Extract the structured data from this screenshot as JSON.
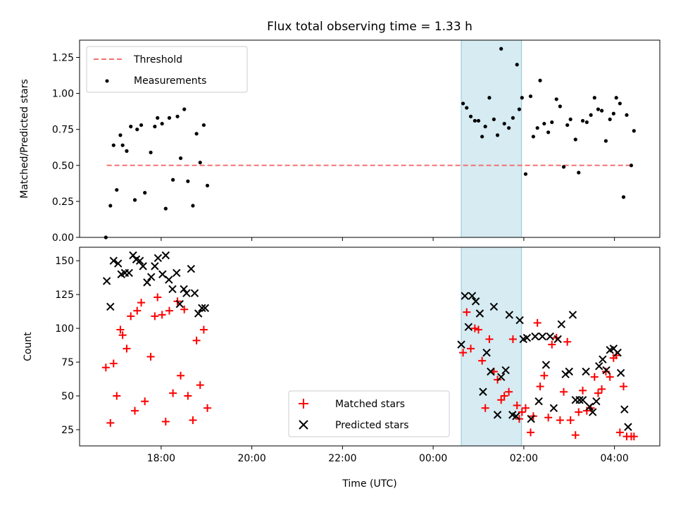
{
  "chart_data": [
    {
      "type": "scatter",
      "title": "Flux total observing time = 1.33 h",
      "xlabel": "",
      "ylabel": "Matched/Predicted stars",
      "xlim_hours": [
        16.2,
        29.0
      ],
      "ylim": [
        0,
        1.37
      ],
      "yticks": [
        "0.00",
        "0.25",
        "0.50",
        "0.75",
        "1.00",
        "1.25"
      ],
      "legend_position": "upper-left",
      "shaded_interval_hours": [
        24.62,
        25.95
      ],
      "threshold": {
        "name": "Threshold",
        "value": 0.5,
        "x_range_hours": [
          16.8,
          28.4
        ],
        "color": "#f27272"
      },
      "series": [
        {
          "name": "Measurements",
          "color": "#000000",
          "points": [
            [
              16.78,
              0.0
            ],
            [
              16.88,
              0.22
            ],
            [
              16.95,
              0.64
            ],
            [
              17.02,
              0.33
            ],
            [
              17.1,
              0.71
            ],
            [
              17.15,
              0.64
            ],
            [
              17.24,
              0.6
            ],
            [
              17.33,
              0.77
            ],
            [
              17.42,
              0.26
            ],
            [
              17.47,
              0.75
            ],
            [
              17.56,
              0.78
            ],
            [
              17.64,
              0.31
            ],
            [
              17.77,
              0.59
            ],
            [
              17.86,
              0.77
            ],
            [
              17.92,
              0.83
            ],
            [
              18.02,
              0.79
            ],
            [
              18.1,
              0.2
            ],
            [
              18.18,
              0.83
            ],
            [
              18.26,
              0.4
            ],
            [
              18.36,
              0.84
            ],
            [
              18.43,
              0.55
            ],
            [
              18.51,
              0.89
            ],
            [
              18.59,
              0.39
            ],
            [
              18.7,
              0.22
            ],
            [
              18.78,
              0.72
            ],
            [
              18.86,
              0.52
            ],
            [
              18.94,
              0.78
            ],
            [
              19.02,
              0.36
            ],
            [
              24.66,
              0.93
            ],
            [
              24.74,
              0.9
            ],
            [
              24.83,
              0.84
            ],
            [
              24.92,
              0.81
            ],
            [
              25.0,
              0.81
            ],
            [
              25.08,
              0.7
            ],
            [
              25.15,
              0.77
            ],
            [
              25.24,
              0.97
            ],
            [
              25.34,
              0.82
            ],
            [
              25.42,
              0.71
            ],
            [
              25.5,
              1.31
            ],
            [
              25.57,
              0.79
            ],
            [
              25.67,
              0.76
            ],
            [
              25.76,
              0.83
            ],
            [
              25.85,
              1.2
            ],
            [
              25.9,
              0.89
            ],
            [
              25.96,
              0.97
            ],
            [
              26.04,
              0.44
            ],
            [
              26.15,
              0.98
            ],
            [
              26.21,
              0.7
            ],
            [
              26.3,
              0.76
            ],
            [
              26.36,
              1.09
            ],
            [
              26.45,
              0.79
            ],
            [
              26.54,
              0.73
            ],
            [
              26.62,
              0.8
            ],
            [
              26.72,
              0.96
            ],
            [
              26.8,
              0.91
            ],
            [
              26.88,
              0.49
            ],
            [
              26.96,
              0.78
            ],
            [
              27.03,
              0.82
            ],
            [
              27.14,
              0.68
            ],
            [
              27.21,
              0.45
            ],
            [
              27.3,
              0.81
            ],
            [
              27.39,
              0.8
            ],
            [
              27.48,
              0.85
            ],
            [
              27.56,
              0.97
            ],
            [
              27.64,
              0.89
            ],
            [
              27.72,
              0.88
            ],
            [
              27.81,
              0.67
            ],
            [
              27.9,
              0.82
            ],
            [
              27.98,
              0.86
            ],
            [
              28.04,
              0.97
            ],
            [
              28.12,
              0.93
            ],
            [
              28.2,
              0.28
            ],
            [
              28.27,
              0.85
            ],
            [
              28.37,
              0.5
            ],
            [
              28.43,
              0.74
            ]
          ]
        }
      ]
    },
    {
      "type": "scatter",
      "title": "",
      "xlabel": "Time (UTC)",
      "ylabel": "Count",
      "xlim_hours": [
        16.2,
        29.0
      ],
      "ylim": [
        13,
        160
      ],
      "yticks": [
        "25",
        "50",
        "75",
        "100",
        "125",
        "150"
      ],
      "xticks": [
        {
          "hour": 18,
          "label": "18:00"
        },
        {
          "hour": 20,
          "label": "20:00"
        },
        {
          "hour": 22,
          "label": "22:00"
        },
        {
          "hour": 24,
          "label": "00:00"
        },
        {
          "hour": 26,
          "label": "02:00"
        },
        {
          "hour": 28,
          "label": "04:00"
        }
      ],
      "legend_position": "lower-center",
      "shaded_interval_hours": [
        24.62,
        25.95
      ],
      "series": [
        {
          "name": "Matched stars",
          "marker": "plus",
          "color": "#ff0000",
          "points": [
            [
              16.78,
              71
            ],
            [
              16.88,
              30
            ],
            [
              16.95,
              74
            ],
            [
              17.02,
              50
            ],
            [
              17.1,
              99
            ],
            [
              17.15,
              95
            ],
            [
              17.24,
              85
            ],
            [
              17.33,
              109
            ],
            [
              17.42,
              39
            ],
            [
              17.47,
              113
            ],
            [
              17.56,
              119
            ],
            [
              17.64,
              46
            ],
            [
              17.77,
              79
            ],
            [
              17.86,
              109
            ],
            [
              17.92,
              123
            ],
            [
              18.02,
              110
            ],
            [
              18.1,
              31
            ],
            [
              18.18,
              113
            ],
            [
              18.26,
              52
            ],
            [
              18.36,
              120
            ],
            [
              18.43,
              65
            ],
            [
              18.51,
              114
            ],
            [
              18.59,
              50
            ],
            [
              18.7,
              32
            ],
            [
              18.78,
              91
            ],
            [
              18.86,
              58
            ],
            [
              18.94,
              99
            ],
            [
              19.02,
              41
            ],
            [
              24.66,
              82
            ],
            [
              24.74,
              112
            ],
            [
              24.83,
              85
            ],
            [
              24.92,
              100
            ],
            [
              25.0,
              99
            ],
            [
              25.08,
              76
            ],
            [
              25.15,
              41
            ],
            [
              25.24,
              92
            ],
            [
              25.34,
              68
            ],
            [
              25.42,
              62
            ],
            [
              25.5,
              47
            ],
            [
              25.57,
              50
            ],
            [
              25.67,
              53
            ],
            [
              25.76,
              92
            ],
            [
              25.85,
              43
            ],
            [
              25.9,
              33
            ],
            [
              25.96,
              38
            ],
            [
              26.04,
              41
            ],
            [
              26.15,
              23
            ],
            [
              26.21,
              35
            ],
            [
              26.3,
              104
            ],
            [
              26.36,
              57
            ],
            [
              26.45,
              65
            ],
            [
              26.54,
              34
            ],
            [
              26.62,
              88
            ],
            [
              26.72,
              93
            ],
            [
              26.8,
              32
            ],
            [
              26.88,
              53
            ],
            [
              26.96,
              90
            ],
            [
              27.03,
              32
            ],
            [
              27.14,
              21
            ],
            [
              27.21,
              38
            ],
            [
              27.3,
              54
            ],
            [
              27.39,
              39
            ],
            [
              27.48,
              41
            ],
            [
              27.56,
              64
            ],
            [
              27.64,
              52
            ],
            [
              27.72,
              55
            ],
            [
              27.81,
              68
            ],
            [
              27.9,
              64
            ],
            [
              27.98,
              78
            ],
            [
              28.04,
              80
            ],
            [
              28.12,
              23
            ],
            [
              28.2,
              57
            ],
            [
              28.27,
              20
            ],
            [
              28.37,
              20
            ],
            [
              28.43,
              20
            ]
          ]
        },
        {
          "name": "Predicted stars",
          "marker": "x",
          "color": "#000000",
          "points": [
            [
              16.8,
              135
            ],
            [
              16.88,
              116
            ],
            [
              16.95,
              150
            ],
            [
              17.05,
              148
            ],
            [
              17.12,
              140
            ],
            [
              17.2,
              141
            ],
            [
              17.29,
              141
            ],
            [
              17.38,
              154
            ],
            [
              17.45,
              151
            ],
            [
              17.53,
              150
            ],
            [
              17.6,
              146
            ],
            [
              17.69,
              134
            ],
            [
              17.78,
              138
            ],
            [
              17.86,
              146
            ],
            [
              17.93,
              152
            ],
            [
              18.03,
              140
            ],
            [
              18.1,
              154
            ],
            [
              18.17,
              136
            ],
            [
              18.25,
              129
            ],
            [
              18.34,
              141
            ],
            [
              18.41,
              118
            ],
            [
              18.5,
              129
            ],
            [
              18.56,
              126
            ],
            [
              18.66,
              144
            ],
            [
              18.74,
              126
            ],
            [
              18.82,
              111
            ],
            [
              18.9,
              115
            ],
            [
              18.97,
              115
            ],
            [
              24.62,
              88
            ],
            [
              24.7,
              124
            ],
            [
              24.78,
              101
            ],
            [
              24.86,
              124
            ],
            [
              24.94,
              120
            ],
            [
              25.03,
              111
            ],
            [
              25.1,
              53
            ],
            [
              25.18,
              82
            ],
            [
              25.27,
              68
            ],
            [
              25.34,
              116
            ],
            [
              25.42,
              36
            ],
            [
              25.5,
              64
            ],
            [
              25.6,
              69
            ],
            [
              25.68,
              110
            ],
            [
              25.75,
              36
            ],
            [
              25.83,
              35
            ],
            [
              25.91,
              106
            ],
            [
              25.99,
              92
            ],
            [
              26.07,
              93
            ],
            [
              26.16,
              33
            ],
            [
              26.25,
              94
            ],
            [
              26.33,
              46
            ],
            [
              26.41,
              94
            ],
            [
              26.49,
              73
            ],
            [
              26.58,
              94
            ],
            [
              26.66,
              41
            ],
            [
              26.75,
              92
            ],
            [
              26.83,
              103
            ],
            [
              26.92,
              66
            ],
            [
              27.0,
              68
            ],
            [
              27.08,
              110
            ],
            [
              27.14,
              47
            ],
            [
              27.23,
              47
            ],
            [
              27.3,
              47
            ],
            [
              27.37,
              68
            ],
            [
              27.45,
              42
            ],
            [
              27.52,
              38
            ],
            [
              27.6,
              46
            ],
            [
              27.66,
              72
            ],
            [
              27.74,
              77
            ],
            [
              27.82,
              69
            ],
            [
              27.9,
              84
            ],
            [
              27.98,
              85
            ],
            [
              28.07,
              82
            ],
            [
              28.14,
              67
            ],
            [
              28.22,
              40
            ],
            [
              28.3,
              27
            ]
          ]
        }
      ]
    }
  ]
}
